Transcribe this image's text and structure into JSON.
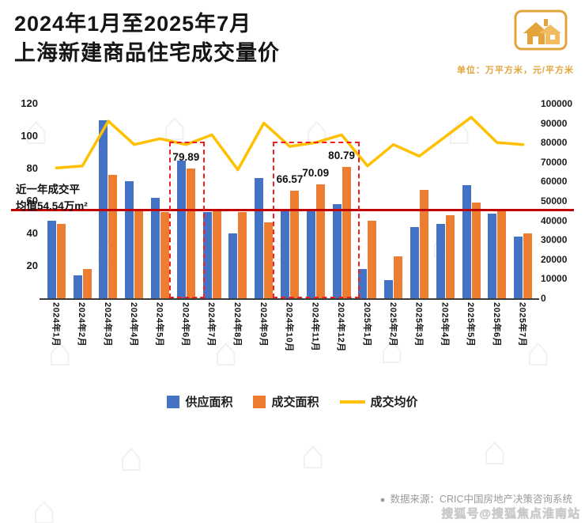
{
  "header": {
    "title_line1": "2024年1月至2025年7月",
    "title_line2": "上海新建商品住宅成交量价",
    "unit_note": "单位：万平方米，元/平方米"
  },
  "chart_data": {
    "type": "bar",
    "subtype": "bar+line combo, dual axis",
    "categories": [
      "2024年1月",
      "2024年2月",
      "2024年3月",
      "2024年4月",
      "2024年5月",
      "2024年6月",
      "2024年7月",
      "2024年8月",
      "2024年9月",
      "2024年10月",
      "2024年11月",
      "2024年12月",
      "2025年1月",
      "2025年2月",
      "2025年3月",
      "2025年4月",
      "2025年5月",
      "2025年6月",
      "2025年7月"
    ],
    "series": [
      {
        "name": "供应面积",
        "type": "bar",
        "axis": "left",
        "color": "#4472C4",
        "values": [
          48,
          14,
          110,
          72,
          62,
          85,
          53,
          40,
          74,
          54,
          54,
          58,
          18,
          11,
          44,
          46,
          70,
          52,
          38
        ]
      },
      {
        "name": "成交面积",
        "type": "bar",
        "axis": "left",
        "color": "#ED7D31",
        "values": [
          46,
          18,
          76,
          55,
          53,
          79.89,
          54,
          53,
          47,
          66.57,
          70.09,
          80.79,
          48,
          26,
          67,
          51,
          59,
          55,
          40
        ]
      },
      {
        "name": "成交均价",
        "type": "line",
        "axis": "right",
        "color": "#FFC000",
        "values": [
          67000,
          68000,
          91000,
          79000,
          82000,
          79000,
          84000,
          66000,
          90000,
          78000,
          80000,
          84000,
          68000,
          79000,
          73000,
          83000,
          93000,
          80000,
          79000
        ]
      }
    ],
    "left_axis": {
      "min": 0,
      "max": 120,
      "ticks": [
        120,
        100,
        80,
        60,
        40,
        20
      ]
    },
    "right_axis": {
      "min": 0,
      "max": 100000,
      "ticks": [
        100000,
        90000,
        80000,
        70000,
        60000,
        50000,
        40000,
        30000,
        20000,
        10000,
        0
      ]
    },
    "avg_line": {
      "value": 54.54,
      "color": "#C00000",
      "label_line1": "近一年成交平",
      "label_line2": "均值54.54万m²"
    },
    "data_labels": [
      {
        "month_index": 5,
        "text": "79.89"
      },
      {
        "month_index": 9,
        "text": "66.57"
      },
      {
        "month_index": 10,
        "text": "70.09"
      },
      {
        "month_index": 11,
        "text": "80.79"
      }
    ],
    "highlight_boxes": [
      {
        "from": 5,
        "to": 5
      },
      {
        "from": 9,
        "to": 11
      }
    ],
    "grid": "off",
    "legend_position": "bottom"
  },
  "legend": [
    {
      "label": "供应面积",
      "color": "#4472C4",
      "type": "bar"
    },
    {
      "label": "成交面积",
      "color": "#ED7D31",
      "type": "bar"
    },
    {
      "label": "成交均价",
      "color": "#FFC000",
      "type": "line"
    }
  ],
  "footer": {
    "bullet": "●",
    "source": "数据来源：CRIC中国房地产决策咨询系统"
  },
  "watermark": "搜狐号@搜狐焦点淮南站"
}
